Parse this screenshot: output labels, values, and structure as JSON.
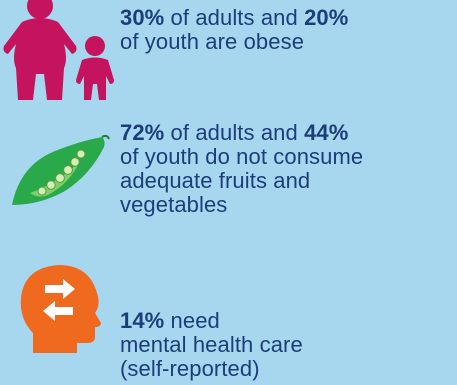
{
  "colors": {
    "background": "#a7d7ef",
    "text": "#1c3d7a",
    "obesity_icon": "#c4145d",
    "produce_icon": "#2aa94b",
    "mental_icon": "#ef6a1e"
  },
  "stats": [
    {
      "icon": "family-icon",
      "parts": [
        {
          "text": "30%",
          "bold": true
        },
        {
          "text": " of adults and ",
          "bold": false
        },
        {
          "text": "20%",
          "bold": true
        },
        {
          "text": "\nof youth are obese",
          "bold": false
        }
      ]
    },
    {
      "icon": "pea-pod-icon",
      "parts": [
        {
          "text": "72%",
          "bold": true
        },
        {
          "text": " of adults and ",
          "bold": false
        },
        {
          "text": "44%",
          "bold": true
        },
        {
          "text": "\nof youth do not consume\nadequate fruits and\nvegetables",
          "bold": false
        }
      ]
    },
    {
      "icon": "head-arrows-icon",
      "parts": [
        {
          "text": "14%",
          "bold": true
        },
        {
          "text": " need\nmental health care\n(self-reported)",
          "bold": false
        }
      ]
    }
  ]
}
